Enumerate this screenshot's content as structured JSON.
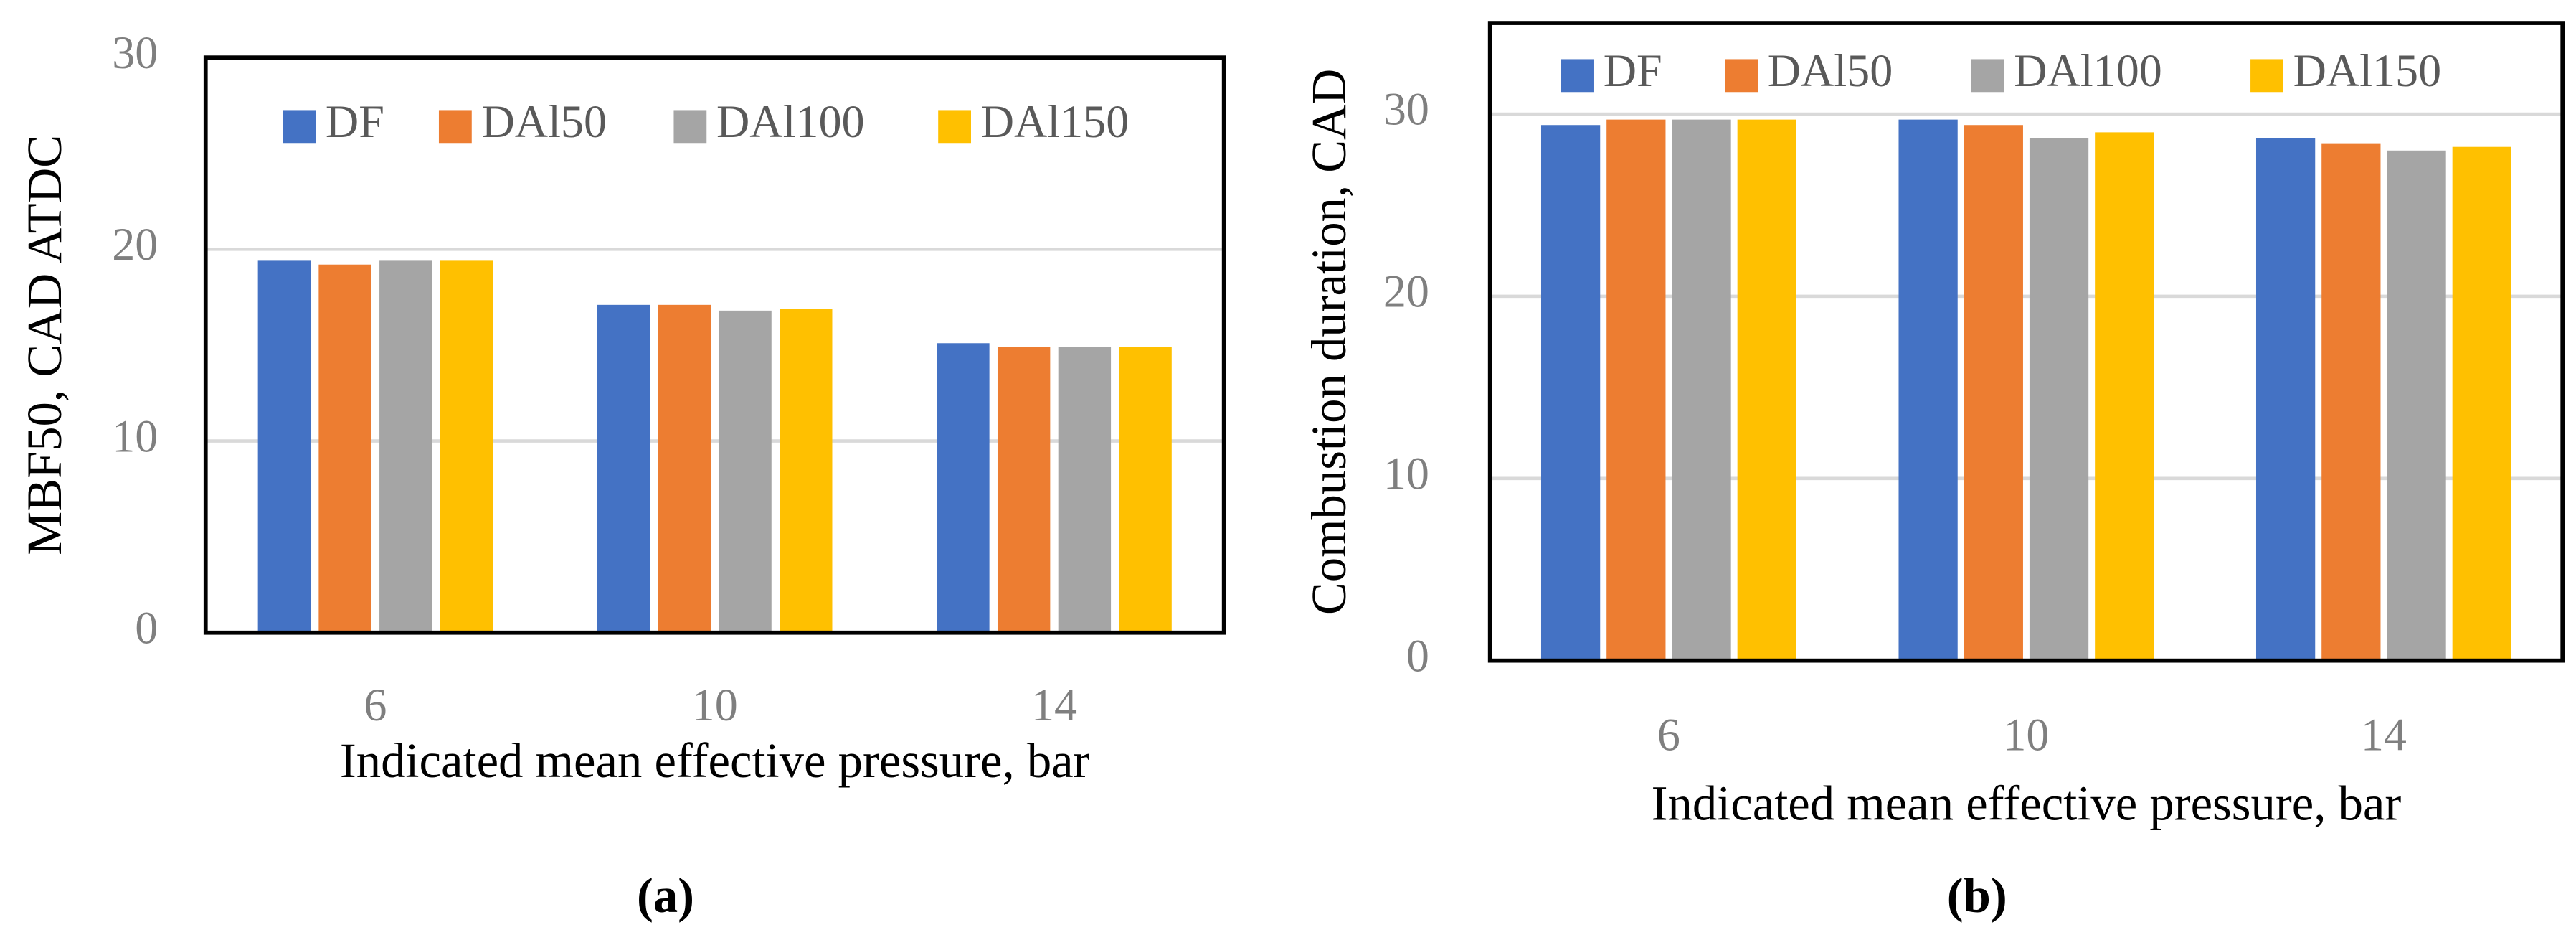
{
  "chart_data": [
    {
      "type": "bar",
      "caption": "(a)",
      "x_label": "Indicated mean effective pressure, bar",
      "y_label": "MBF50, CAD ATDC",
      "categories": [
        "6",
        "10",
        "14"
      ],
      "series": [
        {
          "name": "DF",
          "color": "#4472c4",
          "values": [
            19.4,
            17.1,
            15.1
          ]
        },
        {
          "name": "DAl50",
          "color": "#ed7d31",
          "values": [
            19.2,
            17.1,
            14.9
          ]
        },
        {
          "name": "DAl100",
          "color": "#a5a5a5",
          "values": [
            19.4,
            16.8,
            14.9
          ]
        },
        {
          "name": "DAl150",
          "color": "#ffc000",
          "values": [
            19.4,
            16.9,
            14.9
          ]
        }
      ],
      "ylim": [
        0,
        30
      ],
      "yticks": [
        0,
        10,
        20,
        30
      ],
      "grid": true,
      "legend": "top"
    },
    {
      "type": "bar",
      "caption": "(b)",
      "x_label": "Indicated mean effective pressure, bar",
      "y_label": "Combustion duration, CAD",
      "categories": [
        "6",
        "10",
        "14"
      ],
      "series": [
        {
          "name": "DF",
          "color": "#4472c4",
          "values": [
            29.4,
            29.7,
            28.7
          ]
        },
        {
          "name": "DAl50",
          "color": "#ed7d31",
          "values": [
            29.7,
            29.4,
            28.4
          ]
        },
        {
          "name": "DAl100",
          "color": "#a5a5a5",
          "values": [
            29.7,
            28.7,
            28.0
          ]
        },
        {
          "name": "DAl150",
          "color": "#ffc000",
          "values": [
            29.7,
            29.0,
            28.2
          ]
        }
      ],
      "ylim": [
        0,
        35
      ],
      "yticks": [
        0,
        10,
        20,
        30
      ],
      "grid": true,
      "legend": "top"
    }
  ]
}
